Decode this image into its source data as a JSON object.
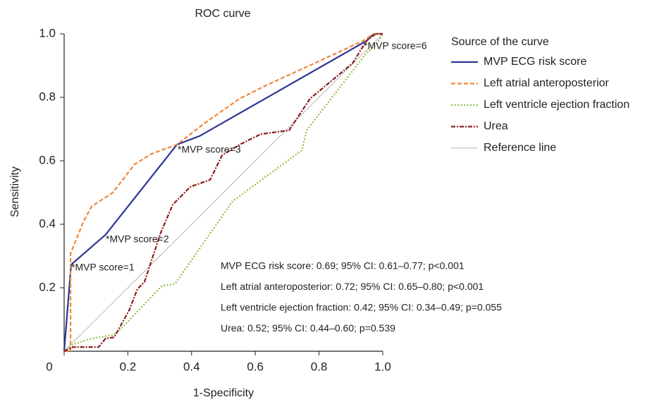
{
  "chart_data": {
    "type": "line",
    "title": "ROC curve",
    "x_label": "1-Specificity",
    "y_label": "Sensitivity",
    "legend_title": "Source of the curve",
    "xlim": [
      0,
      1
    ],
    "ylim": [
      0,
      1
    ],
    "xticks": [
      0,
      0.2,
      0.4,
      0.6,
      0.8,
      {
        "value": 1,
        "label": "1.0"
      }
    ],
    "yticks": [
      0.2,
      0.4,
      0.6,
      0.8,
      {
        "value": 1,
        "label": "1.0"
      }
    ],
    "series": [
      {
        "name": "MVP ECG risk score",
        "color": "#2b3590",
        "style": "solid",
        "x": [
          0,
          0.022,
          0.13,
          0.354,
          0.425,
          0.949,
          0.971,
          1
        ],
        "values": [
          0,
          0.273,
          0.367,
          0.651,
          0.678,
          0.978,
          1,
          1
        ]
      },
      {
        "name": "Left atrial anteroposterior",
        "color": "#f0883a",
        "style": "dashed",
        "x": [
          0,
          0.02,
          0.02,
          0.06,
          0.086,
          0.153,
          0.221,
          0.274,
          0.354,
          0.44,
          0.551,
          0.639,
          0.794,
          0.938,
          0.971,
          1
        ],
        "values": [
          0,
          0,
          0.307,
          0.407,
          0.456,
          0.5,
          0.589,
          0.622,
          0.651,
          0.718,
          0.796,
          0.84,
          0.911,
          0.978,
          1,
          1
        ]
      },
      {
        "name": "Left ventricle ejection fraction",
        "color": "#8fbf3f",
        "style": "dotted",
        "x": [
          0,
          0.029,
          0.086,
          0.153,
          0.17,
          0.308,
          0.347,
          0.529,
          0.746,
          0.761,
          0.949,
          0.982,
          1
        ],
        "values": [
          0,
          0.022,
          0.04,
          0.051,
          0.062,
          0.207,
          0.211,
          0.473,
          0.633,
          0.696,
          0.94,
          0.969,
          1
        ]
      },
      {
        "name": "Urea",
        "color": "#8b1a1a",
        "style": "dashdot",
        "x": [
          0,
          0.027,
          0.108,
          0.13,
          0.157,
          0.204,
          0.23,
          0.252,
          0.303,
          0.341,
          0.396,
          0.458,
          0.496,
          0.551,
          0.617,
          0.706,
          0.772,
          0.905,
          0.949,
          0.978,
          1
        ],
        "values": [
          0,
          0.013,
          0.013,
          0.04,
          0.044,
          0.129,
          0.196,
          0.218,
          0.373,
          0.462,
          0.518,
          0.54,
          0.618,
          0.651,
          0.684,
          0.696,
          0.796,
          0.907,
          0.978,
          1,
          1
        ]
      },
      {
        "name": "Reference line",
        "color": "#b5b5b5",
        "style": "thin",
        "x": [
          0,
          1
        ],
        "values": [
          0,
          1
        ]
      }
    ],
    "point_annotations": [
      "*MVP score=1",
      "*MVP score=2",
      "*MVP score=3",
      "*MVP score=6"
    ],
    "stats": [
      "MVP ECG risk score: 0.69; 95% CI: 0.61–0.77; p<0.001",
      "Left atrial anteroposterior: 0.72; 95% CI: 0.65–0.80; p<0.001",
      "Left ventricle ejection fraction: 0.42; 95% CI: 0.34–0.49; p=0.055",
      "Urea: 0.52; 95% CI: 0.44–0.60; p=0.539"
    ]
  }
}
